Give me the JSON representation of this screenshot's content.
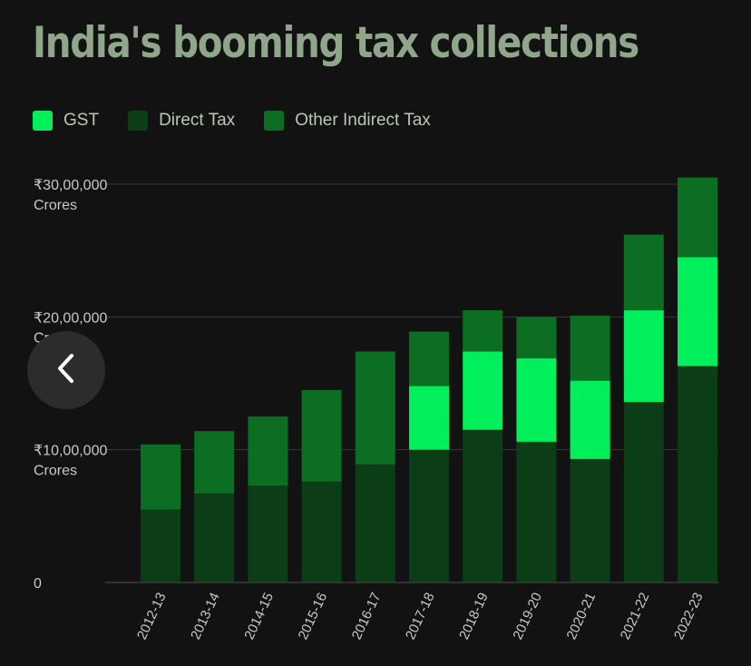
{
  "title": "India's booming tax collections",
  "colors": {
    "background": "#121212",
    "title": "#8fa68a",
    "legend_text": "#b9c9b4",
    "axis_text": "#c9c9c9",
    "grid": "#3a3a3a",
    "gst": "#00ef5a",
    "direct": "#0b3d16",
    "other_indirect": "#0b6e22"
  },
  "back_icon": "chevron-left-icon",
  "chart_data": {
    "type": "bar",
    "stacked": true,
    "title": "India's booming tax collections",
    "xlabel": "",
    "ylabel": "",
    "ylim": [
      0,
      30000000
    ],
    "yticks": [
      {
        "value": 0,
        "line1": "0",
        "line2": ""
      },
      {
        "value": 10000000,
        "line1": "₹10,00,000",
        "line2": "Crores"
      },
      {
        "value": 20000000,
        "line1": "₹20,00,000",
        "line2": "Crores"
      },
      {
        "value": 30000000,
        "line1": "₹30,00,000",
        "line2": "Crores"
      }
    ],
    "categories": [
      "2012-13",
      "2013-14",
      "2014-15",
      "2015-16",
      "2016-17",
      "2017-18",
      "2018-19",
      "2019-20",
      "2020-21",
      "2021-22",
      "2022-23"
    ],
    "series": [
      {
        "name": "Direct Tax",
        "color": "#0b3d16",
        "values": [
          5500000,
          6700000,
          7300000,
          7600000,
          8900000,
          10000000,
          11500000,
          10600000,
          9300000,
          13600000,
          16300000
        ]
      },
      {
        "name": "GST",
        "color": "#00ef5a",
        "values": [
          0,
          0,
          0,
          0,
          0,
          4800000,
          5900000,
          6300000,
          5900000,
          6900000,
          8200000
        ]
      },
      {
        "name": "Other Indirect Tax",
        "color": "#0b6e22",
        "values": [
          4900000,
          4700000,
          5200000,
          6900000,
          8500000,
          4100000,
          3100000,
          3100000,
          4900000,
          5700000,
          6000000
        ]
      }
    ],
    "legend": [
      "GST",
      "Direct Tax",
      "Other Indirect Tax"
    ],
    "grid": true,
    "legend_position": "top-left"
  }
}
